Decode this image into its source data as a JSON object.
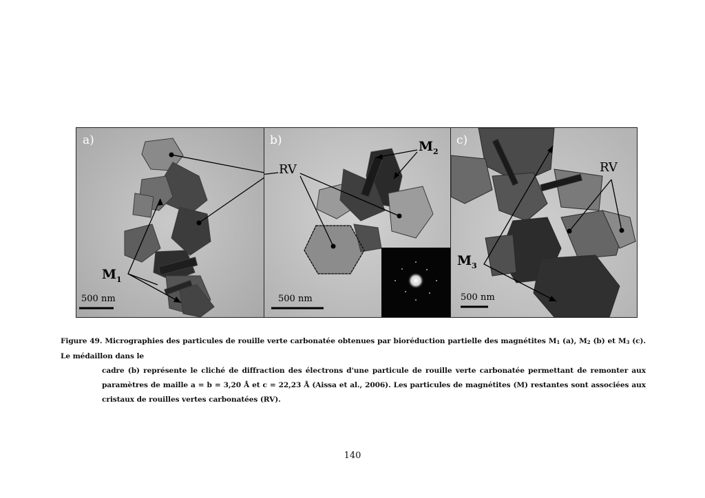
{
  "figure": {
    "panels": [
      {
        "id": "a",
        "label": "a)",
        "scale": "500 nm",
        "labels": [
          {
            "text": "M",
            "sub": "1"
          }
        ]
      },
      {
        "id": "b",
        "label": "b)",
        "scale": "500 nm",
        "labels": [
          {
            "text": "RV",
            "sub": ""
          },
          {
            "text": "M",
            "sub": "2"
          }
        ]
      },
      {
        "id": "c",
        "label": "c)",
        "scale": "500 nm",
        "labels": [
          {
            "text": "RV",
            "sub": ""
          },
          {
            "text": "M",
            "sub": "3"
          }
        ]
      }
    ]
  },
  "caption": {
    "lead": "Figure 49. Micrographies des particules de rouille verte carbonatée obtenues par bioréduction partielle des magnétites ",
    "m": "M",
    "s1": "1",
    "t1": " (a), ",
    "s2": "2",
    "t2": " (b) et ",
    "s3": "3",
    "t3": " (c). Le médaillon dans le",
    "rest": "cadre (b) représente le cliché de diffraction des électrons d'une particule de rouille verte carbonatée permettant de remonter aux paramètres de maille a = b = 3,20 Å et c = 22,23 Å (Aissa et al., 2006). Les particules de magnétites (M) restantes sont associées aux cristaux de rouilles vertes carbonatées (RV)."
  },
  "page_number": "140"
}
